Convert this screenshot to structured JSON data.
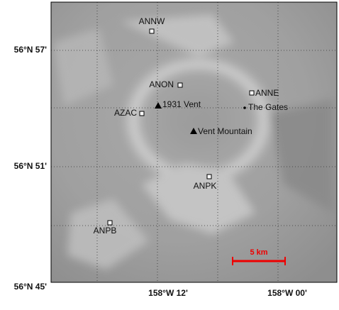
{
  "map": {
    "lat_ticks": [
      "56°N 57'",
      "56°N 51'",
      "56°N 45'"
    ],
    "lon_ticks": [
      "158°W 12'",
      "158°W 00'"
    ],
    "stations": [
      "ANNW",
      "ANON",
      "ANNE",
      "AZAC",
      "ANPK",
      "ANPB"
    ],
    "vents": [
      "1931 Vent",
      "Vent Mountain"
    ],
    "place": "The Gates",
    "scale_label": "5 km"
  }
}
